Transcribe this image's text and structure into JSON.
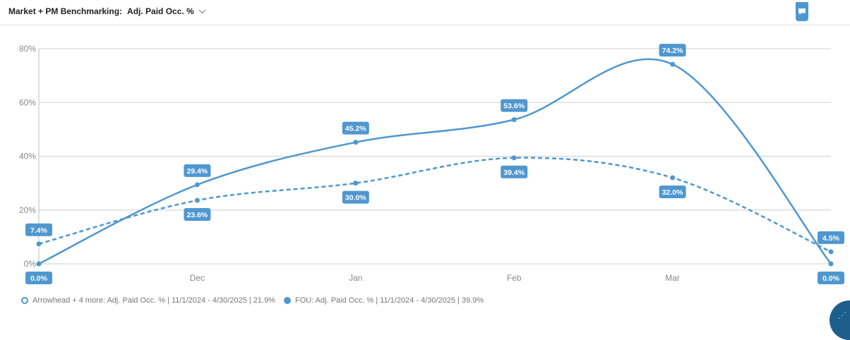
{
  "header": {
    "title": "Market + PM Benchmarking:",
    "metric": "Adj. Paid Occ. %"
  },
  "colors": {
    "accent": "#4f97cf",
    "grid": "#cfcfcf",
    "label_text": "#ffffff"
  },
  "icons": {
    "dropdown": "chevron-down-icon",
    "comment": "comment-icon",
    "fab": "help-widget-icon"
  },
  "chart_data": {
    "type": "line",
    "categories": [
      "",
      "Dec",
      "Jan",
      "Feb",
      "Mar",
      ""
    ],
    "ylim": [
      0,
      80
    ],
    "yticks": [
      0,
      20,
      40,
      60,
      80
    ],
    "ytick_labels": [
      "0%",
      "20%",
      "40%",
      "60%",
      "80%"
    ],
    "grid": true,
    "legend_position": "bottom-left",
    "series": [
      {
        "name": "FOU: Adj. Paid Occ. % | 11/1/2024 - 4/30/2025 | 39.9%",
        "style": "solid",
        "values": [
          0.0,
          29.4,
          45.2,
          53.6,
          74.2,
          0.0
        ],
        "labels": [
          "0.0%",
          "29.4%",
          "45.2%",
          "53.6%",
          "74.2%",
          "0.0%"
        ]
      },
      {
        "name": "Arrowhead + 4 more: Adj. Paid Occ. % | 11/1/2024 - 4/30/2025 | 21.9%",
        "style": "dashed",
        "values": [
          7.4,
          23.6,
          30.0,
          39.4,
          32.0,
          4.5
        ],
        "labels": [
          "7.4%",
          "23.6%",
          "30.0%",
          "39.4%",
          "32.0%",
          "4.5%"
        ]
      }
    ]
  },
  "legend": [
    {
      "marker": "hollow",
      "label": "Arrowhead + 4 more: Adj. Paid Occ. % | 11/1/2024 - 4/30/2025 | 21.9%"
    },
    {
      "marker": "filled",
      "label": "FOU: Adj. Paid Occ. % | 11/1/2024 - 4/30/2025 | 39.9%"
    }
  ]
}
